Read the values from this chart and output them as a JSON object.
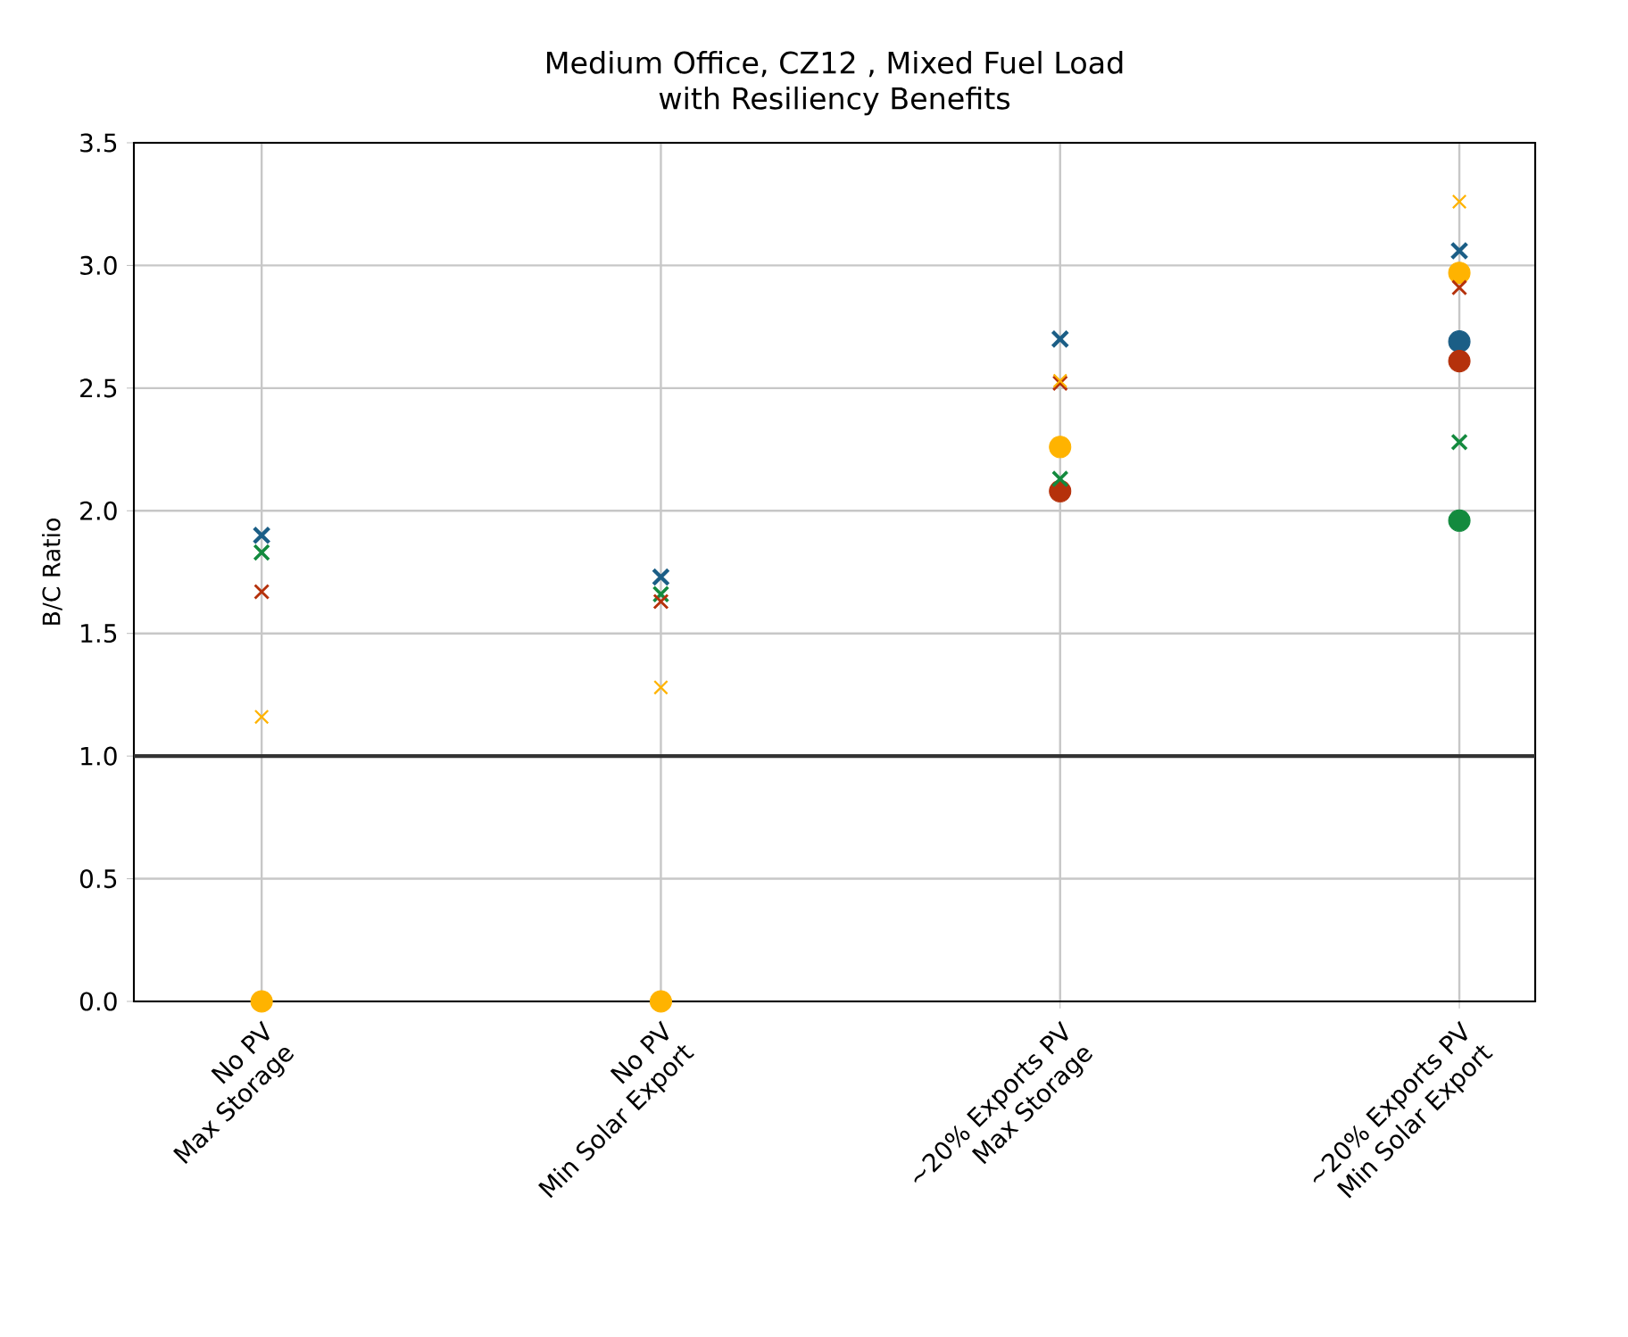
{
  "chart_data": {
    "type": "scatter",
    "title": "Medium Office, CZ12 , Mixed Fuel Load\nwith Resiliency Benefits",
    "ylabel": "B/C Ratio",
    "categories": [
      "No PV\nMax Storage",
      "No PV\nMin Solar Export",
      "~20% Exports PV\nMax Storage",
      "~20% Exports PV\nMin Solar Export"
    ],
    "ylim": [
      0,
      3.5
    ],
    "yticks": [
      {
        "value": 0,
        "label": "0.0"
      },
      {
        "value": 0.5,
        "label": "0.5"
      },
      {
        "value": 1,
        "label": "1.0"
      },
      {
        "value": 1.5,
        "label": "1.5"
      },
      {
        "value": 2,
        "label": "2.0"
      },
      {
        "value": 2.5,
        "label": "2.5"
      },
      {
        "value": 3,
        "label": "3.0"
      },
      {
        "value": 3.5,
        "label": "3.5"
      }
    ],
    "grid": true,
    "ref_lines": [
      {
        "axis": "y",
        "value": 1,
        "color": "#333333"
      }
    ],
    "series": [
      {
        "color": "#1b5e86",
        "marker": "circle",
        "values": [
          null,
          null,
          null,
          2.69
        ]
      },
      {
        "color": "#138a3e",
        "marker": "circle",
        "values": [
          null,
          null,
          null,
          1.96
        ]
      },
      {
        "color": "#b5310b",
        "marker": "circle",
        "values": [
          null,
          null,
          2.08,
          2.61
        ]
      },
      {
        "color": "#ffb300",
        "marker": "circle",
        "values": [
          0,
          0,
          2.26,
          2.97
        ]
      },
      {
        "color": "#1b5e86",
        "marker": "cross",
        "values": [
          1.9,
          1.73,
          2.7,
          3.06
        ]
      },
      {
        "color": "#138a3e",
        "marker": "cross",
        "values": [
          1.83,
          1.66,
          2.13,
          2.28
        ]
      },
      {
        "color": "#b5310b",
        "marker": "cross",
        "values": [
          1.67,
          1.63,
          2.52,
          2.91
        ]
      },
      {
        "color": "#ffb300",
        "marker": "cross",
        "values": [
          1.16,
          1.28,
          2.53,
          3.26
        ]
      }
    ]
  }
}
